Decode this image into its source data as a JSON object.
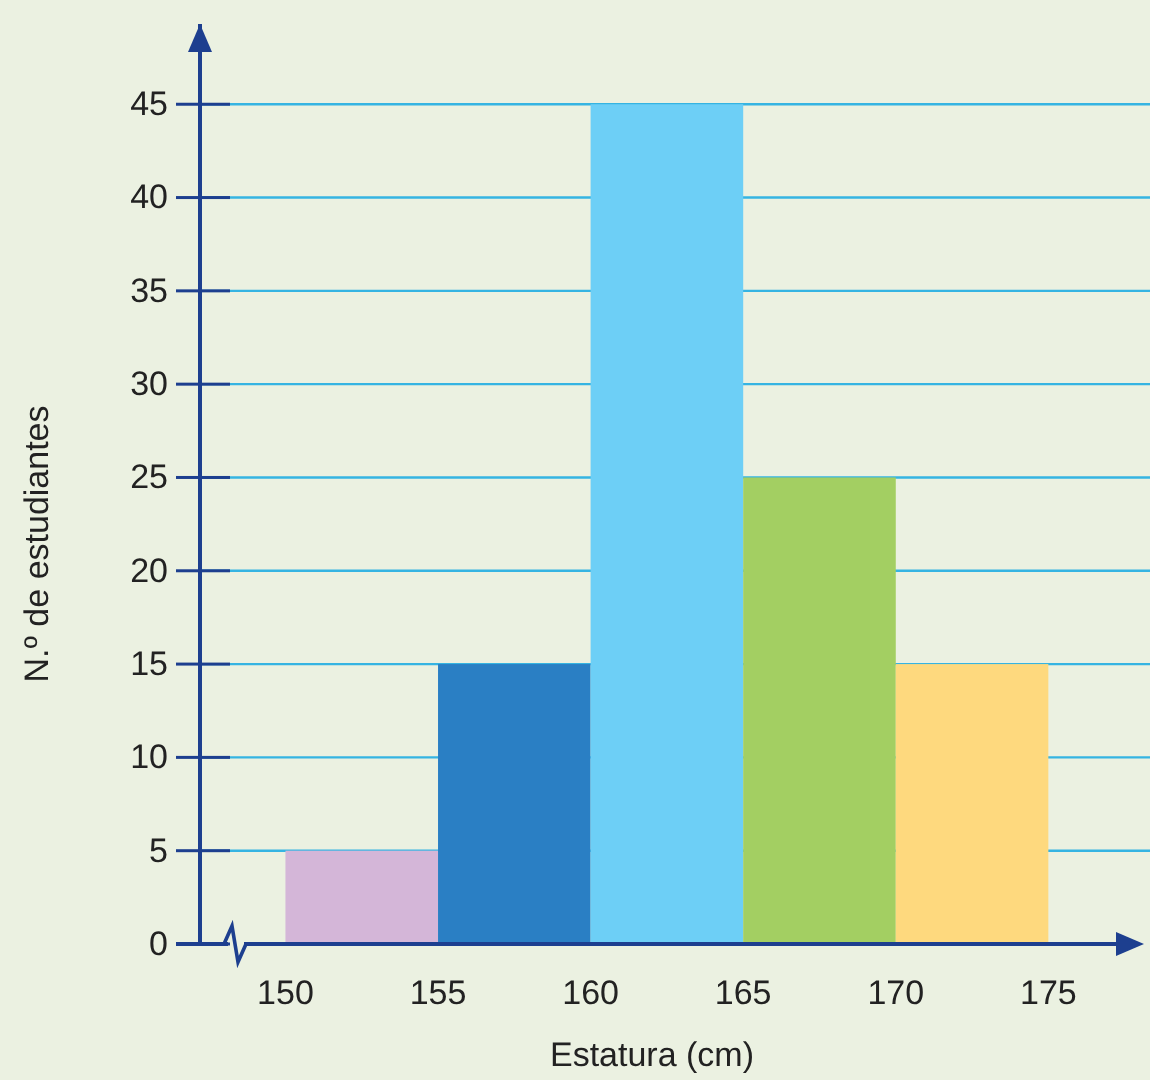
{
  "chart_data": {
    "type": "histogram",
    "xlabel": "Estatura (cm)",
    "ylabel": "N.º de estudiantes",
    "bins": [
      150,
      155,
      160,
      165,
      170,
      175
    ],
    "values": [
      5,
      15,
      45,
      25,
      15
    ],
    "colors": [
      "#d4b6d8",
      "#2a7fc4",
      "#6dcff6",
      "#a3cf62",
      "#fed97e"
    ],
    "xlim": [
      147.2,
      178.2
    ],
    "ylim": [
      0,
      49.3
    ],
    "xticks": [
      150,
      155,
      160,
      165,
      170,
      175
    ],
    "yticks": [
      0,
      5,
      10,
      15,
      20,
      25,
      30,
      35,
      40,
      45
    ],
    "grid": "y"
  }
}
